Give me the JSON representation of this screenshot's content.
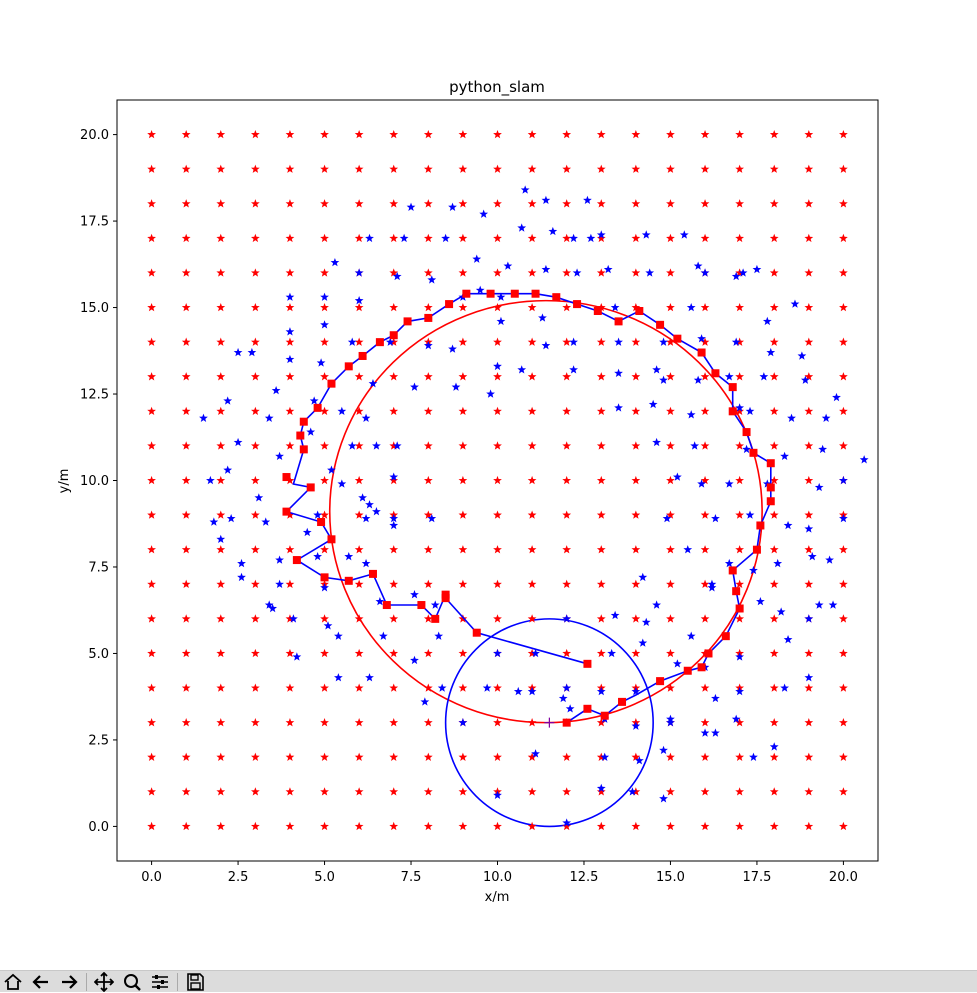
{
  "window": {
    "title": "python_slam"
  },
  "colors": {
    "landmark": "#ff0000",
    "estimated": "#0000ff",
    "path": "#0000ff",
    "pose": "#ff0000",
    "circle_red": "#ff0000",
    "circle_blue": "#0000ff"
  },
  "toolbar": {
    "buttons": [
      {
        "name": "home-icon"
      },
      {
        "name": "back-arrow-icon"
      },
      {
        "name": "forward-arrow-icon"
      },
      {
        "name": "pan-icon"
      },
      {
        "name": "zoom-icon"
      },
      {
        "name": "configure-subplots-icon"
      },
      {
        "name": "save-icon"
      }
    ]
  },
  "chart_data": {
    "type": "scatter",
    "title": "python_slam",
    "xlabel": "x/m",
    "ylabel": "y/m",
    "xlim": [
      -1.0,
      21.0
    ],
    "ylim": [
      -1.0,
      21.0
    ],
    "xticks": [
      "0.0",
      "2.5",
      "5.0",
      "7.5",
      "10.0",
      "12.5",
      "15.0",
      "17.5",
      "20.0"
    ],
    "yticks": [
      "0.0",
      "2.5",
      "5.0",
      "7.5",
      "10.0",
      "12.5",
      "15.0",
      "17.5",
      "20.0"
    ],
    "xtick_values": [
      0,
      2.5,
      5,
      7.5,
      10,
      12.5,
      15,
      17.5,
      20
    ],
    "ytick_values": [
      0,
      2.5,
      5,
      7.5,
      10,
      12.5,
      15,
      17.5,
      20
    ],
    "landmark_grid": {
      "start": 0,
      "end": 20,
      "step": 1,
      "color": "#ff0000",
      "marker": "star"
    },
    "estimated_landmarks": [
      [
        1.5,
        11.8
      ],
      [
        1.7,
        10.0
      ],
      [
        1.8,
        8.8
      ],
      [
        2.0,
        8.3
      ],
      [
        2.2,
        12.3
      ],
      [
        2.2,
        10.3
      ],
      [
        2.3,
        8.9
      ],
      [
        2.5,
        13.7
      ],
      [
        2.5,
        11.1
      ],
      [
        2.6,
        7.6
      ],
      [
        2.6,
        7.2
      ],
      [
        2.9,
        13.7
      ],
      [
        3.1,
        9.5
      ],
      [
        3.3,
        8.8
      ],
      [
        3.4,
        11.8
      ],
      [
        3.4,
        6.4
      ],
      [
        3.5,
        6.3
      ],
      [
        3.6,
        12.6
      ],
      [
        3.7,
        10.7
      ],
      [
        3.7,
        7.0
      ],
      [
        3.7,
        7.7
      ],
      [
        4.0,
        15.3
      ],
      [
        4.0,
        14.3
      ],
      [
        4.0,
        13.5
      ],
      [
        4.1,
        6.0
      ],
      [
        4.2,
        4.9
      ],
      [
        4.5,
        8.5
      ],
      [
        4.6,
        11.4
      ],
      [
        4.7,
        12.3
      ],
      [
        4.8,
        7.8
      ],
      [
        4.8,
        9.0
      ],
      [
        4.9,
        13.4
      ],
      [
        5.0,
        15.3
      ],
      [
        5.0,
        14.5
      ],
      [
        5.0,
        6.9
      ],
      [
        5.1,
        5.8
      ],
      [
        5.2,
        10.3
      ],
      [
        5.3,
        16.3
      ],
      [
        5.4,
        4.3
      ],
      [
        5.4,
        5.5
      ],
      [
        5.5,
        12.0
      ],
      [
        5.5,
        9.9
      ],
      [
        5.7,
        7.8
      ],
      [
        5.8,
        14.0
      ],
      [
        5.8,
        11.0
      ],
      [
        6.0,
        16.0
      ],
      [
        6.0,
        15.2
      ],
      [
        6.1,
        9.5
      ],
      [
        6.2,
        11.8
      ],
      [
        6.2,
        8.9
      ],
      [
        6.2,
        7.6
      ],
      [
        6.3,
        9.3
      ],
      [
        6.3,
        4.3
      ],
      [
        6.3,
        17.0
      ],
      [
        6.4,
        12.8
      ],
      [
        6.5,
        9.1
      ],
      [
        6.5,
        11.0
      ],
      [
        6.6,
        6.5
      ],
      [
        6.7,
        5.5
      ],
      [
        6.9,
        14.0
      ],
      [
        7.0,
        8.7
      ],
      [
        7.0,
        8.9
      ],
      [
        7.0,
        10.1
      ],
      [
        7.1,
        15.9
      ],
      [
        7.1,
        11.0
      ],
      [
        7.3,
        17.0
      ],
      [
        7.5,
        17.9
      ],
      [
        7.6,
        4.8
      ],
      [
        7.6,
        6.7
      ],
      [
        7.6,
        12.7
      ],
      [
        7.9,
        3.6
      ],
      [
        8.0,
        13.9
      ],
      [
        8.1,
        15.8
      ],
      [
        8.1,
        8.9
      ],
      [
        8.2,
        6.4
      ],
      [
        8.3,
        5.5
      ],
      [
        8.4,
        4.0
      ],
      [
        8.5,
        17.0
      ],
      [
        8.7,
        17.9
      ],
      [
        8.7,
        13.8
      ],
      [
        8.8,
        12.7
      ],
      [
        9.0,
        3.0
      ],
      [
        9.0,
        15.3
      ],
      [
        9.4,
        16.4
      ],
      [
        9.5,
        15.5
      ],
      [
        9.6,
        17.7
      ],
      [
        9.7,
        4.0
      ],
      [
        9.8,
        12.5
      ],
      [
        10.0,
        13.3
      ],
      [
        10.0,
        5.0
      ],
      [
        10.0,
        0.9
      ],
      [
        10.1,
        15.3
      ],
      [
        10.1,
        14.6
      ],
      [
        10.3,
        16.2
      ],
      [
        10.6,
        3.9
      ],
      [
        10.7,
        17.3
      ],
      [
        10.7,
        13.2
      ],
      [
        10.8,
        18.4
      ],
      [
        11.0,
        3.9
      ],
      [
        11.1,
        2.1
      ],
      [
        11.1,
        5.0
      ],
      [
        11.3,
        14.7
      ],
      [
        11.4,
        13.9
      ],
      [
        11.4,
        16.1
      ],
      [
        11.4,
        18.1
      ],
      [
        11.6,
        17.2
      ],
      [
        11.9,
        3.7
      ],
      [
        12.0,
        4.0
      ],
      [
        12.0,
        6.0
      ],
      [
        12.0,
        0.1
      ],
      [
        12.1,
        3.4
      ],
      [
        12.2,
        17.0
      ],
      [
        12.2,
        13.2
      ],
      [
        12.2,
        14.0
      ],
      [
        12.3,
        16.0
      ],
      [
        12.6,
        18.1
      ],
      [
        12.7,
        17.0
      ],
      [
        13.0,
        17.1
      ],
      [
        13.0,
        1.1
      ],
      [
        13.0,
        3.9
      ],
      [
        13.1,
        3.1
      ],
      [
        13.1,
        2.0
      ],
      [
        13.2,
        16.1
      ],
      [
        13.3,
        5.0
      ],
      [
        13.4,
        15.0
      ],
      [
        13.4,
        6.1
      ],
      [
        13.5,
        12.1
      ],
      [
        13.5,
        14.0
      ],
      [
        13.5,
        13.1
      ],
      [
        13.9,
        1.0
      ],
      [
        14.0,
        3.9
      ],
      [
        14.0,
        2.9
      ],
      [
        14.1,
        1.9
      ],
      [
        14.2,
        5.3
      ],
      [
        14.2,
        7.2
      ],
      [
        14.3,
        17.1
      ],
      [
        14.3,
        5.9
      ],
      [
        14.4,
        16.0
      ],
      [
        14.5,
        12.2
      ],
      [
        14.6,
        13.2
      ],
      [
        14.6,
        11.1
      ],
      [
        14.6,
        6.4
      ],
      [
        14.8,
        14.0
      ],
      [
        14.8,
        12.9
      ],
      [
        14.8,
        2.2
      ],
      [
        14.8,
        0.8
      ],
      [
        14.9,
        8.9
      ],
      [
        15.0,
        3.0
      ],
      [
        15.0,
        3.1
      ],
      [
        15.2,
        4.7
      ],
      [
        15.2,
        10.1
      ],
      [
        15.4,
        17.1
      ],
      [
        15.5,
        8.0
      ],
      [
        15.6,
        5.5
      ],
      [
        15.6,
        11.9
      ],
      [
        15.6,
        15.0
      ],
      [
        15.7,
        11.0
      ],
      [
        15.8,
        16.2
      ],
      [
        15.8,
        12.9
      ],
      [
        15.9,
        14.1
      ],
      [
        15.9,
        9.9
      ],
      [
        16.0,
        2.7
      ],
      [
        16.0,
        16.0
      ],
      [
        16.0,
        4.6
      ],
      [
        16.2,
        7.0
      ],
      [
        16.2,
        6.9
      ],
      [
        16.3,
        2.7
      ],
      [
        16.3,
        3.7
      ],
      [
        16.3,
        8.9
      ],
      [
        16.7,
        13.0
      ],
      [
        16.7,
        7.6
      ],
      [
        16.7,
        9.9
      ],
      [
        16.9,
        3.1
      ],
      [
        16.9,
        15.9
      ],
      [
        16.9,
        14.0
      ],
      [
        17.0,
        12.1
      ],
      [
        17.0,
        4.9
      ],
      [
        17.0,
        3.9
      ],
      [
        17.1,
        16.0
      ],
      [
        17.2,
        10.9
      ],
      [
        17.3,
        12.0
      ],
      [
        17.3,
        9.0
      ],
      [
        17.4,
        7.4
      ],
      [
        17.4,
        2.0
      ],
      [
        17.5,
        16.1
      ],
      [
        17.6,
        6.5
      ],
      [
        17.7,
        13.0
      ],
      [
        17.8,
        9.9
      ],
      [
        17.8,
        14.6
      ],
      [
        17.9,
        13.7
      ],
      [
        18.0,
        2.3
      ],
      [
        18.1,
        7.6
      ],
      [
        18.2,
        6.2
      ],
      [
        18.3,
        10.7
      ],
      [
        18.3,
        4.0
      ],
      [
        18.4,
        8.7
      ],
      [
        18.4,
        5.4
      ],
      [
        18.5,
        11.8
      ],
      [
        18.6,
        15.1
      ],
      [
        18.8,
        13.6
      ],
      [
        18.9,
        12.9
      ],
      [
        19.0,
        8.6
      ],
      [
        19.0,
        6.0
      ],
      [
        19.0,
        4.3
      ],
      [
        19.1,
        7.8
      ],
      [
        19.3,
        9.8
      ],
      [
        19.3,
        6.4
      ],
      [
        19.4,
        10.9
      ],
      [
        19.5,
        11.8
      ],
      [
        19.6,
        7.7
      ],
      [
        19.7,
        6.4
      ],
      [
        19.8,
        12.4
      ],
      [
        20.0,
        10.0
      ],
      [
        20.0,
        8.9
      ],
      [
        20.6,
        10.6
      ]
    ],
    "estimated_path": [
      [
        12.0,
        3.0
      ],
      [
        12.6,
        3.4
      ],
      [
        13.1,
        3.2
      ],
      [
        13.6,
        3.6
      ],
      [
        14.0,
        3.8
      ],
      [
        14.7,
        4.2
      ],
      [
        15.5,
        4.5
      ],
      [
        15.9,
        4.6
      ],
      [
        16.1,
        5.0
      ],
      [
        16.6,
        5.5
      ],
      [
        17.0,
        6.3
      ],
      [
        16.9,
        6.8
      ],
      [
        16.8,
        7.4
      ],
      [
        17.5,
        8.0
      ],
      [
        17.6,
        8.7
      ],
      [
        17.9,
        9.4
      ],
      [
        17.9,
        9.8
      ],
      [
        17.9,
        10.5
      ],
      [
        17.4,
        10.8
      ],
      [
        17.2,
        11.4
      ],
      [
        16.8,
        12.0
      ],
      [
        16.8,
        12.7
      ],
      [
        16.3,
        13.1
      ],
      [
        15.9,
        13.7
      ],
      [
        15.2,
        14.1
      ],
      [
        14.7,
        14.5
      ],
      [
        14.1,
        14.9
      ],
      [
        13.5,
        14.6
      ],
      [
        12.9,
        14.9
      ],
      [
        12.3,
        15.1
      ],
      [
        11.7,
        15.3
      ],
      [
        11.1,
        15.4
      ],
      [
        10.5,
        15.4
      ],
      [
        9.8,
        15.4
      ],
      [
        9.1,
        15.4
      ],
      [
        8.6,
        15.1
      ],
      [
        8.0,
        14.7
      ],
      [
        7.4,
        14.6
      ],
      [
        7.0,
        14.2
      ],
      [
        6.6,
        14.0
      ],
      [
        6.1,
        13.6
      ],
      [
        5.7,
        13.3
      ],
      [
        5.2,
        12.8
      ],
      [
        4.8,
        12.1
      ],
      [
        4.4,
        11.7
      ],
      [
        4.3,
        11.3
      ],
      [
        4.4,
        10.9
      ],
      [
        4.1,
        9.9
      ],
      [
        4.6,
        9.8
      ],
      [
        3.9,
        9.1
      ],
      [
        4.9,
        8.8
      ],
      [
        5.2,
        8.3
      ],
      [
        4.2,
        7.7
      ],
      [
        5.0,
        7.2
      ],
      [
        5.7,
        7.1
      ],
      [
        6.4,
        7.3
      ],
      [
        6.8,
        6.4
      ],
      [
        7.8,
        6.4
      ],
      [
        8.2,
        6.0
      ],
      [
        8.5,
        6.7
      ],
      [
        8.5,
        6.6
      ],
      [
        9.4,
        5.6
      ],
      [
        12.6,
        4.7
      ]
    ],
    "pose_markers": [
      [
        12.0,
        3.0
      ],
      [
        12.6,
        3.4
      ],
      [
        13.1,
        3.2
      ],
      [
        13.6,
        3.6
      ],
      [
        14.7,
        4.2
      ],
      [
        15.5,
        4.5
      ],
      [
        15.9,
        4.6
      ],
      [
        16.1,
        5.0
      ],
      [
        16.6,
        5.5
      ],
      [
        17.0,
        6.3
      ],
      [
        16.9,
        6.8
      ],
      [
        16.8,
        7.4
      ],
      [
        17.5,
        8.0
      ],
      [
        17.6,
        8.7
      ],
      [
        17.9,
        9.4
      ],
      [
        17.9,
        9.8
      ],
      [
        17.9,
        10.5
      ],
      [
        17.4,
        10.8
      ],
      [
        17.2,
        11.4
      ],
      [
        16.8,
        12.0
      ],
      [
        16.8,
        12.7
      ],
      [
        16.3,
        13.1
      ],
      [
        15.9,
        13.7
      ],
      [
        15.2,
        14.1
      ],
      [
        14.7,
        14.5
      ],
      [
        14.1,
        14.9
      ],
      [
        13.5,
        14.6
      ],
      [
        12.9,
        14.9
      ],
      [
        12.3,
        15.1
      ],
      [
        11.7,
        15.3
      ],
      [
        11.1,
        15.4
      ],
      [
        10.5,
        15.4
      ],
      [
        9.8,
        15.4
      ],
      [
        9.1,
        15.4
      ],
      [
        8.6,
        15.1
      ],
      [
        8.0,
        14.7
      ],
      [
        7.4,
        14.6
      ],
      [
        7.0,
        14.2
      ],
      [
        6.6,
        14.0
      ],
      [
        6.1,
        13.6
      ],
      [
        5.7,
        13.3
      ],
      [
        5.2,
        12.8
      ],
      [
        4.8,
        12.1
      ],
      [
        4.4,
        11.7
      ],
      [
        4.3,
        11.3
      ],
      [
        4.4,
        10.9
      ],
      [
        4.6,
        9.8
      ],
      [
        3.9,
        10.1
      ],
      [
        3.9,
        9.1
      ],
      [
        4.9,
        8.8
      ],
      [
        5.2,
        8.3
      ],
      [
        4.2,
        7.7
      ],
      [
        5.0,
        7.2
      ],
      [
        5.7,
        7.1
      ],
      [
        6.4,
        7.3
      ],
      [
        6.8,
        6.4
      ],
      [
        7.8,
        6.4
      ],
      [
        8.2,
        6.0
      ],
      [
        8.5,
        6.7
      ],
      [
        8.5,
        6.6
      ],
      [
        9.4,
        5.6
      ],
      [
        12.6,
        4.7
      ]
    ],
    "red_circle": {
      "cx": 11.4,
      "cy": 9.1,
      "r_x": 6.25,
      "r_y": 6.1
    },
    "blue_circle": {
      "cx": 11.5,
      "cy": 3.0,
      "r": 3.0
    },
    "true_pose": [
      11.5,
      3.0
    ]
  }
}
